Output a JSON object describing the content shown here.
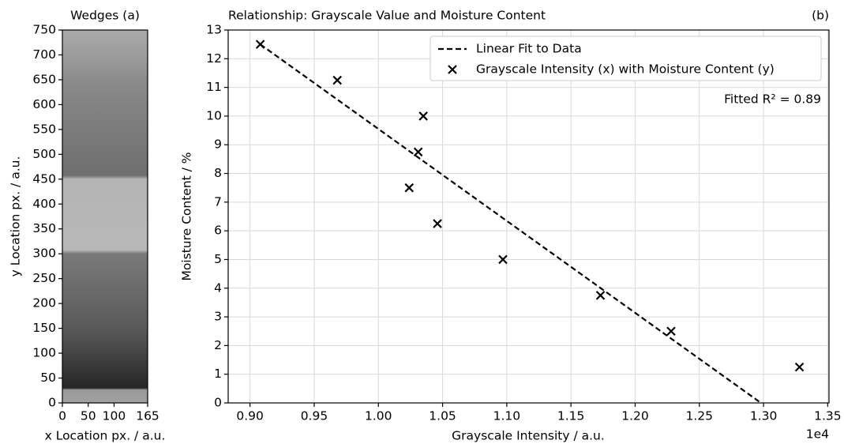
{
  "chart_data": [
    {
      "type": "image",
      "title": "Wedges (a)",
      "xlabel": "x Location px. / a.u.",
      "ylabel": "y Location px. / a.u.",
      "xlim": [
        0,
        165
      ],
      "ylim": [
        0,
        750
      ],
      "xticks": [
        0,
        50,
        100,
        165
      ],
      "yticks": [
        0,
        50,
        100,
        150,
        200,
        250,
        300,
        350,
        400,
        450,
        500,
        550,
        600,
        650,
        700,
        750
      ]
    },
    {
      "type": "scatter",
      "title": "Relationship: Grayscale Value and Moisture Content",
      "panel_label": "(b)",
      "xlabel": "Grayscale Intensity / a.u.",
      "ylabel": "Moisture Content / %",
      "x_offset_label": "1e4",
      "xlim": [
        0.883,
        1.351
      ],
      "ylim": [
        0,
        13
      ],
      "xticks": [
        {
          "value": 0.9,
          "label": "0.90"
        },
        0.95,
        {
          "value": 1,
          "label": "1.00"
        },
        1.05,
        {
          "value": 1.1,
          "label": "1.10"
        },
        1.15,
        {
          "value": 1.2,
          "label": "1.20"
        },
        1.25,
        {
          "value": 1.3,
          "label": "1.30"
        },
        1.35
      ],
      "yticks": [
        0,
        1,
        2,
        3,
        4,
        5,
        6,
        7,
        8,
        9,
        10,
        11,
        12,
        13
      ],
      "grid": true,
      "legend": "upper right",
      "annotation": "Fitted R² = 0.89",
      "series": [
        {
          "name": "Linear Fit to Data",
          "kind": "line",
          "color": "#000000",
          "x": [
            0.908,
            1.298
          ],
          "values": [
            12.5,
            0
          ]
        },
        {
          "name": "Grayscale Intensity (x) with Moisture Content (y)",
          "kind": "scatter",
          "color": "#000000",
          "x": [
            0.908,
            0.968,
            1.035,
            1.031,
            1.024,
            1.046,
            1.097,
            1.173,
            1.228,
            1.328
          ],
          "values": [
            12.5,
            11.25,
            10,
            8.75,
            7.5,
            6.25,
            5,
            3.75,
            2.5,
            1.25
          ]
        }
      ]
    }
  ]
}
